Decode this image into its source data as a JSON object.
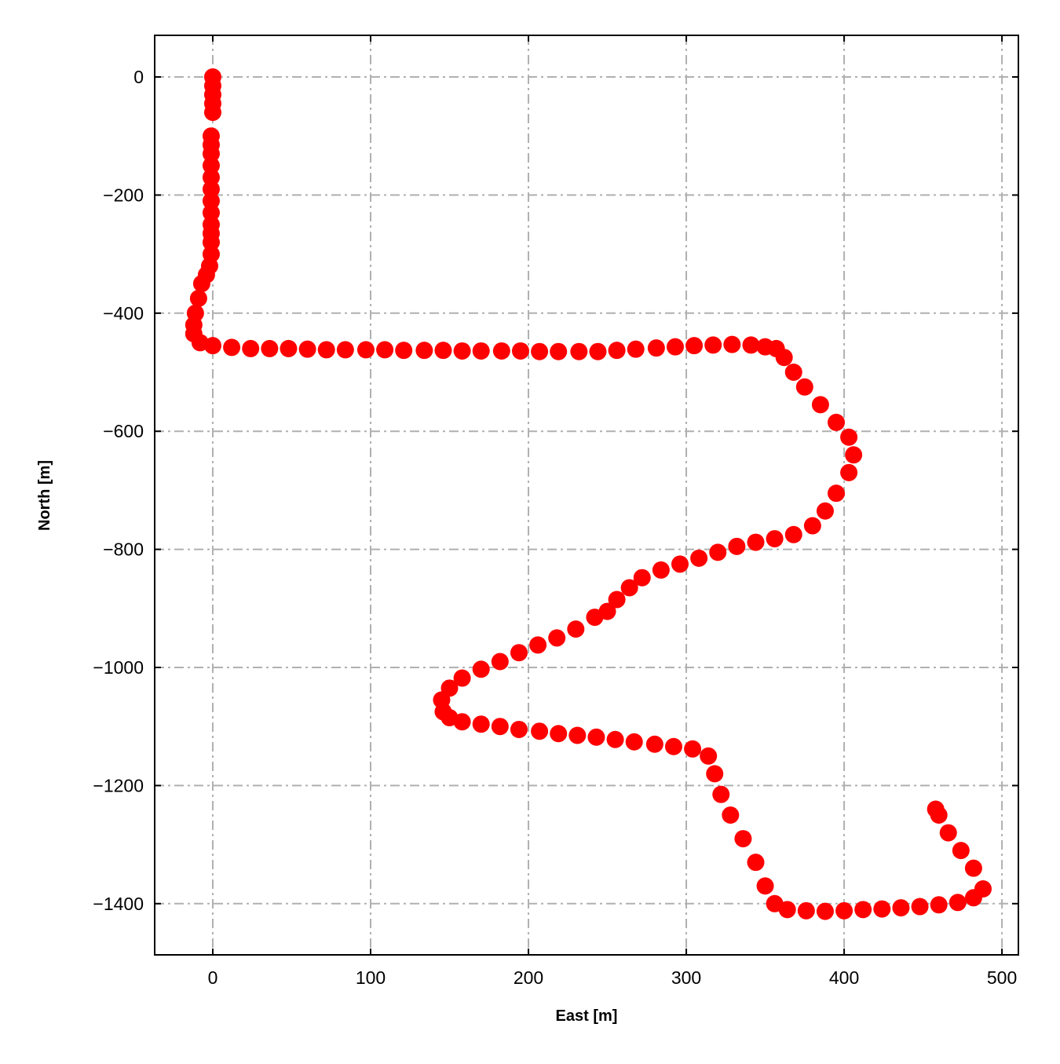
{
  "chart_data": {
    "type": "scatter",
    "title": "",
    "xlabel": "East [m]",
    "ylabel": "North [m]",
    "xlim": [
      -36.8,
      510.4
    ],
    "ylim": [
      -1486.7,
      70.5
    ],
    "xticks": [
      0,
      100,
      200,
      300,
      400,
      500
    ],
    "yticks": [
      0,
      -200,
      -400,
      -600,
      -800,
      -1000,
      -1200,
      -1400
    ],
    "xtick_labels": [
      "0",
      "100",
      "200",
      "300",
      "400",
      "500"
    ],
    "ytick_labels": [
      "0",
      "−200",
      "−400",
      "−600",
      "−800",
      "−1000",
      "−1200",
      "−1400"
    ],
    "grid": true,
    "grid_style": "dash-dot",
    "grid_color": "#b0b0b0",
    "marker_color": "#ff0000",
    "series": [
      {
        "x": [
          0,
          0,
          0,
          0,
          0,
          -1,
          -1,
          -1,
          -1,
          -1,
          -1,
          -1,
          -1,
          -1,
          -1,
          -1,
          -1,
          -2,
          -4,
          -7,
          -9,
          -11,
          -12,
          -12,
          -8,
          0,
          12,
          24,
          36,
          48,
          60,
          72,
          84,
          97,
          109,
          121,
          134,
          146,
          158,
          170,
          183,
          195,
          207,
          219,
          232,
          244,
          256,
          268,
          281,
          293,
          305,
          317,
          329,
          341,
          350,
          357,
          362,
          368,
          375,
          385,
          395,
          403,
          406,
          403,
          395,
          388,
          380,
          368,
          356,
          344,
          332,
          320,
          308,
          296,
          284,
          272,
          264,
          256,
          250,
          242,
          230,
          218,
          206,
          194,
          182,
          170,
          158,
          150,
          145,
          146,
          150,
          158,
          170,
          182,
          194,
          207,
          219,
          231,
          243,
          255,
          267,
          280,
          292,
          304,
          314,
          318,
          322,
          328,
          336,
          344,
          350,
          356,
          364,
          376,
          388,
          400,
          412,
          424,
          436,
          448,
          460,
          472,
          482,
          488,
          482,
          474,
          466,
          460,
          458
        ],
        "y": [
          0,
          -15,
          -30,
          -45,
          -60,
          -100,
          -115,
          -130,
          -150,
          -170,
          -190,
          -210,
          -230,
          -250,
          -265,
          -280,
          -300,
          -320,
          -335,
          -350,
          -375,
          -400,
          -420,
          -435,
          -450,
          -455,
          -458,
          -460,
          -460,
          -460,
          -461,
          -462,
          -462,
          -462,
          -462,
          -463,
          -463,
          -463,
          -464,
          -464,
          -464,
          -464,
          -465,
          -465,
          -465,
          -465,
          -463,
          -461,
          -459,
          -457,
          -455,
          -454,
          -453,
          -454,
          -457,
          -460,
          -475,
          -500,
          -525,
          -555,
          -585,
          -610,
          -640,
          -670,
          -705,
          -735,
          -760,
          -775,
          -782,
          -788,
          -795,
          -805,
          -815,
          -825,
          -835,
          -848,
          -865,
          -885,
          -905,
          -915,
          -935,
          -950,
          -962,
          -975,
          -990,
          -1003,
          -1018,
          -1035,
          -1055,
          -1075,
          -1085,
          -1092,
          -1096,
          -1100,
          -1105,
          -1108,
          -1112,
          -1115,
          -1118,
          -1122,
          -1126,
          -1130,
          -1134,
          -1138,
          -1150,
          -1180,
          -1215,
          -1250,
          -1290,
          -1330,
          -1370,
          -1400,
          -1410,
          -1412,
          -1413,
          -1412,
          -1410,
          -1409,
          -1407,
          -1405,
          -1402,
          -1398,
          -1390,
          -1375,
          -1340,
          -1310,
          -1280,
          -1250,
          -1240
        ]
      }
    ]
  }
}
